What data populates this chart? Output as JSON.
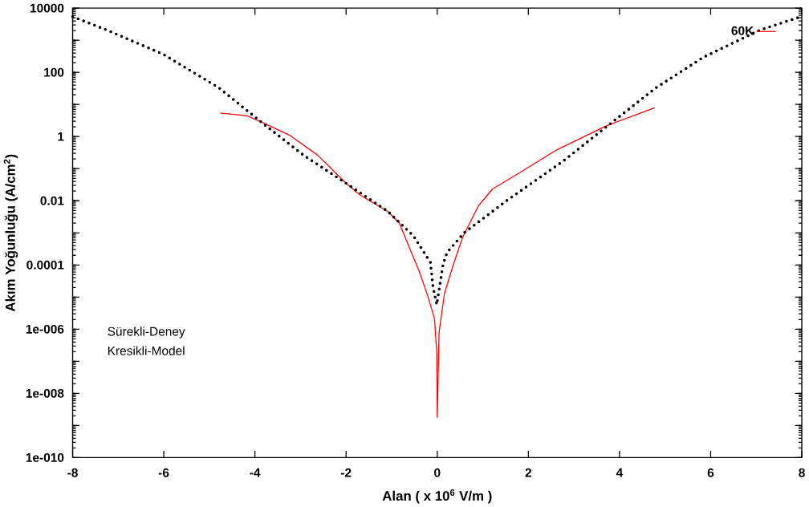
{
  "chart_data": {
    "type": "line",
    "xlabel": "Alan ( x 10$^{6}$ V/m )",
    "ylabel": "Akım Yoğunluğu (A/cm$^{2}$)",
    "log": "y",
    "xlim": [
      -8,
      8
    ],
    "xticks": [
      -8,
      -6,
      -4,
      -2,
      0,
      2,
      4,
      6,
      8
    ],
    "ylim": [
      1e-10,
      10000
    ],
    "yticks": [
      {
        "value": 1e-10,
        "label": "1e-010"
      },
      {
        "value": 1e-09,
        "label": null
      },
      {
        "value": 1e-08,
        "label": "1e-008"
      },
      {
        "value": 1e-07,
        "label": null
      },
      {
        "value": 1e-06,
        "label": "1e-006"
      },
      {
        "value": 1e-05,
        "label": null
      },
      0.0001,
      {
        "value": 0.001,
        "label": null
      },
      0.01,
      {
        "value": 0.1,
        "label": null
      },
      1,
      {
        "value": 10,
        "label": null
      },
      100,
      {
        "value": 1000,
        "label": null
      },
      10000
    ],
    "legend": "top right",
    "series": [
      {
        "name": "60K",
        "color": "#ff0000",
        "line_style": "solid",
        "x": [
          -4.76,
          -4.17,
          -3.8,
          -3.24,
          -2.62,
          -2.0,
          -1.69,
          -1.08,
          -0.83,
          -0.58,
          -0.4,
          -0.21,
          -0.06,
          -0.01,
          0.0,
          0.04,
          0.16,
          0.35,
          0.56,
          0.9,
          1.21,
          1.83,
          2.63,
          3.69,
          4.77
        ],
        "values": [
          5.4,
          4.4,
          2.6,
          1.1,
          0.26,
          0.035,
          0.015,
          0.0046,
          0.002,
          0.00027,
          6.6e-05,
          1.1e-05,
          2.1e-06,
          1.9e-07,
          1.8e-09,
          7.8e-07,
          1.3e-05,
          0.0001,
          0.00074,
          0.0068,
          0.023,
          0.078,
          0.39,
          2.1,
          7.9
        ]
      },
      {
        "color": "#000000",
        "line_style": "dotted",
        "x": [
          -8,
          -7.26,
          -6.02,
          -4.79,
          -3.8,
          -2.93,
          -2.0,
          -1.08,
          -0.52,
          -0.15,
          -0.09,
          -0.01,
          0.13,
          0.22,
          0.59,
          1.52,
          2.76,
          3.69,
          4.8,
          5.85,
          7.09,
          7.98
        ],
        "values": [
          5400,
          2100,
          370,
          33,
          2.4,
          0.26,
          0.035,
          0.0046,
          0.0008,
          0.00012,
          2e-05,
          5.8e-06,
          0.00011,
          0.00025,
          0.001,
          0.01,
          0.17,
          1.9,
          33,
          300,
          2100,
          5400
        ]
      }
    ],
    "annotations": [
      "Sürekli-Deney",
      "Kresikli-Model"
    ]
  }
}
